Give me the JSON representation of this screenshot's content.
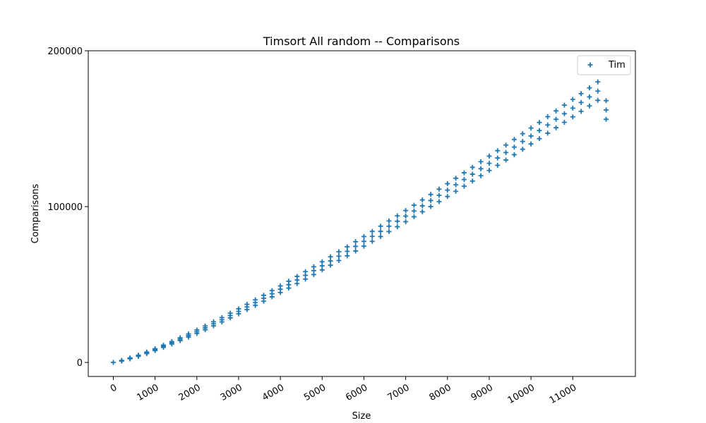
{
  "chart_data": {
    "type": "scatter",
    "title": "Timsort All random -- Comparisons",
    "xlabel": "Size",
    "ylabel": "Comparisons",
    "xlim": [
      -600,
      12500
    ],
    "ylim": [
      -9000,
      200000
    ],
    "xticks": [
      0,
      1000,
      2000,
      3000,
      4000,
      5000,
      6000,
      7000,
      8000,
      9000,
      10000,
      11000
    ],
    "xtick_labels": [
      "0",
      "1000",
      "2000",
      "3000",
      "4000",
      "5000",
      "6000",
      "7000",
      "8000",
      "9000",
      "10000",
      "11000"
    ],
    "yticks": [
      0,
      100000,
      200000
    ],
    "ytick_labels": [
      "0",
      "100000",
      "200000"
    ],
    "grid": false,
    "legend": {
      "position": "top-right",
      "entries": [
        "Tim"
      ]
    },
    "marker": "plus",
    "series": [
      {
        "name": "Tim",
        "color": "#1f77b4",
        "x": [
          0,
          200,
          400,
          600,
          800,
          1000,
          1200,
          1400,
          1600,
          1800,
          2000,
          2200,
          2400,
          2600,
          2800,
          3000,
          3200,
          3400,
          3600,
          3800,
          4000,
          4200,
          4400,
          4600,
          4800,
          5000,
          5200,
          5400,
          5600,
          5800,
          6000,
          6200,
          6400,
          6600,
          6800,
          7000,
          7200,
          7400,
          7600,
          7800,
          8000,
          8200,
          8400,
          8600,
          8800,
          9000,
          9200,
          9400,
          9600,
          9800,
          10000,
          10200,
          10400,
          10600,
          10800,
          11000,
          11200,
          11400,
          11600,
          11800
        ],
        "y": [
          0,
          1100,
          2600,
          4300,
          6200,
          8200,
          10400,
          12600,
          14900,
          17300,
          19700,
          22200,
          24800,
          27400,
          30100,
          32800,
          35600,
          38400,
          41200,
          44100,
          47000,
          49900,
          52900,
          55900,
          58900,
          62000,
          65100,
          68200,
          71300,
          74500,
          77700,
          80900,
          84100,
          87400,
          90600,
          93900,
          97200,
          100500,
          103900,
          107200,
          110600,
          114000,
          117400,
          120800,
          124300,
          127800,
          131200,
          134700,
          138200,
          141800,
          145300,
          148800,
          152400,
          156000,
          159600,
          163200,
          166800,
          170400,
          174100,
          162000
        ],
        "spread": [
          0,
          200,
          300,
          400,
          500,
          600,
          700,
          800,
          900,
          1000,
          1100,
          1200,
          1300,
          1400,
          1500,
          1600,
          1700,
          1800,
          1900,
          2000,
          2100,
          2200,
          2300,
          2400,
          2500,
          2600,
          2700,
          2800,
          2900,
          3000,
          3100,
          3200,
          3300,
          3400,
          3500,
          3600,
          3700,
          3800,
          3900,
          4000,
          4100,
          4200,
          4300,
          4400,
          4500,
          4600,
          4700,
          4800,
          4900,
          5000,
          5100,
          5200,
          5300,
          5400,
          5500,
          5600,
          5700,
          5800,
          5900,
          6000
        ]
      }
    ]
  }
}
